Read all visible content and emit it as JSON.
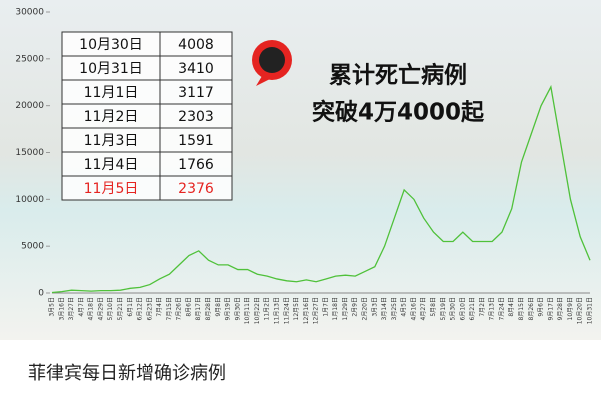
{
  "chart_data": {
    "type": "line",
    "categories": [
      "3月5日",
      "3月16日",
      "3月27日",
      "4月7日",
      "4月18日",
      "4月29日",
      "5月10日",
      "5月21日",
      "6月1日",
      "6月12日",
      "6月23日",
      "7月4日",
      "7月15日",
      "7月26日",
      "8月6日",
      "8月17日",
      "8月28日",
      "9月8日",
      "9月19日",
      "9月30日",
      "10月11日",
      "10月22日",
      "11月2日",
      "11月13日",
      "11月24日",
      "12月5日",
      "12月16日",
      "12月27日",
      "1月7日",
      "1月18日",
      "1月29日",
      "2月9日",
      "2月20日",
      "3月3日",
      "3月14日",
      "3月25日",
      "4月5日",
      "4月16日",
      "4月27日",
      "5月8日",
      "5月19日",
      "5月30日",
      "6月10日",
      "6月21日",
      "7月2日",
      "7月13日",
      "7月24日",
      "8月4日",
      "8月15日",
      "8月26日",
      "9月6日",
      "9月17日",
      "9月28日",
      "10月9日",
      "10月20日",
      "10月31日"
    ],
    "series": [
      {
        "color": "#4fc13a",
        "values": [
          50,
          150,
          300,
          250,
          200,
          250,
          250,
          300,
          500,
          600,
          900,
          1500,
          2000,
          3000,
          4000,
          4500,
          3500,
          3000,
          3000,
          2500,
          2500,
          2000,
          1800,
          1500,
          1300,
          1200,
          1400,
          1200,
          1500,
          1800,
          1900,
          1800,
          2300,
          2800,
          5000,
          8000,
          11000,
          10000,
          8000,
          6500,
          5500,
          5500,
          6500,
          5500,
          5500,
          5500,
          6500,
          9000,
          14000,
          17000,
          20000,
          22000,
          16000,
          10000,
          6000,
          3500
        ]
      }
    ],
    "ylim": [
      0,
      30000
    ],
    "yticks": [
      0,
      5000,
      10000,
      15000,
      20000,
      25000,
      30000
    ]
  },
  "table": {
    "rows": [
      [
        "10月30日",
        "4008"
      ],
      [
        "10月31日",
        "3410"
      ],
      [
        "11月1日",
        "3117"
      ],
      [
        "11月2日",
        "2303"
      ],
      [
        "11月3日",
        "1591"
      ],
      [
        "11月4日",
        "1766"
      ],
      [
        "11月5日",
        "2376"
      ]
    ]
  },
  "callout": [
    "累计死亡病例",
    "突破4万4000起"
  ],
  "caption": "菲律宾每日新增确诊病例"
}
